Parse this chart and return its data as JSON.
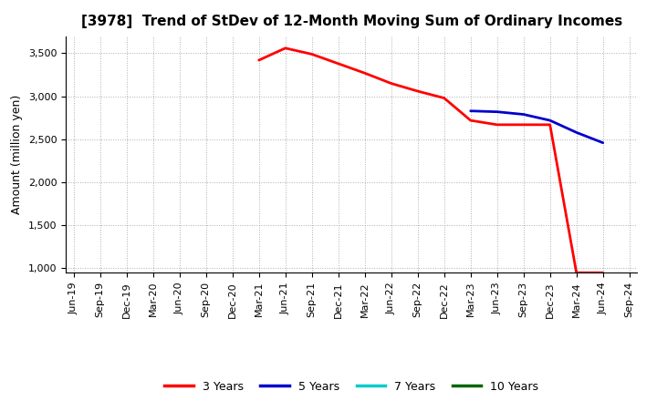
{
  "title": "[3978]  Trend of StDev of 12-Month Moving Sum of Ordinary Incomes",
  "ylabel": "Amount (million yen)",
  "background_color": "#ffffff",
  "grid_color": "#999999",
  "ylim": [
    950,
    3700
  ],
  "yticks": [
    1000,
    1500,
    2000,
    2500,
    3000,
    3500
  ],
  "series": {
    "3 Years": {
      "color": "#ff0000",
      "x": [
        "Mar-21",
        "Jun-21",
        "Sep-21",
        "Dec-21",
        "Mar-22",
        "Jun-22",
        "Sep-22",
        "Dec-22",
        "Mar-23",
        "Jun-23",
        "Sep-23",
        "Dec-23",
        "Mar-24",
        "Jun-24"
      ],
      "y": [
        3420,
        3560,
        3490,
        3380,
        3270,
        3150,
        3060,
        2980,
        2720,
        2670,
        2670,
        2670,
        950,
        950
      ]
    },
    "5 Years": {
      "color": "#0000cc",
      "x": [
        "Mar-23",
        "Jun-23",
        "Sep-23",
        "Dec-23",
        "Mar-24",
        "Jun-24"
      ],
      "y": [
        2830,
        2820,
        2790,
        2720,
        2580,
        2460
      ]
    },
    "7 Years": {
      "color": "#00cccc",
      "x": [],
      "y": []
    },
    "10 Years": {
      "color": "#006600",
      "x": [],
      "y": []
    }
  },
  "xtick_labels": [
    "Jun-19",
    "Sep-19",
    "Dec-19",
    "Mar-20",
    "Jun-20",
    "Sep-20",
    "Dec-20",
    "Mar-21",
    "Jun-21",
    "Sep-21",
    "Dec-21",
    "Mar-22",
    "Jun-22",
    "Sep-22",
    "Dec-22",
    "Mar-23",
    "Jun-23",
    "Sep-23",
    "Dec-23",
    "Mar-24",
    "Jun-24",
    "Sep-24"
  ],
  "legend_entries": [
    "3 Years",
    "5 Years",
    "7 Years",
    "10 Years"
  ],
  "legend_colors": [
    "#ff0000",
    "#0000cc",
    "#00cccc",
    "#006600"
  ],
  "title_fontsize": 11,
  "tick_fontsize": 8,
  "ylabel_fontsize": 9,
  "legend_fontsize": 9
}
